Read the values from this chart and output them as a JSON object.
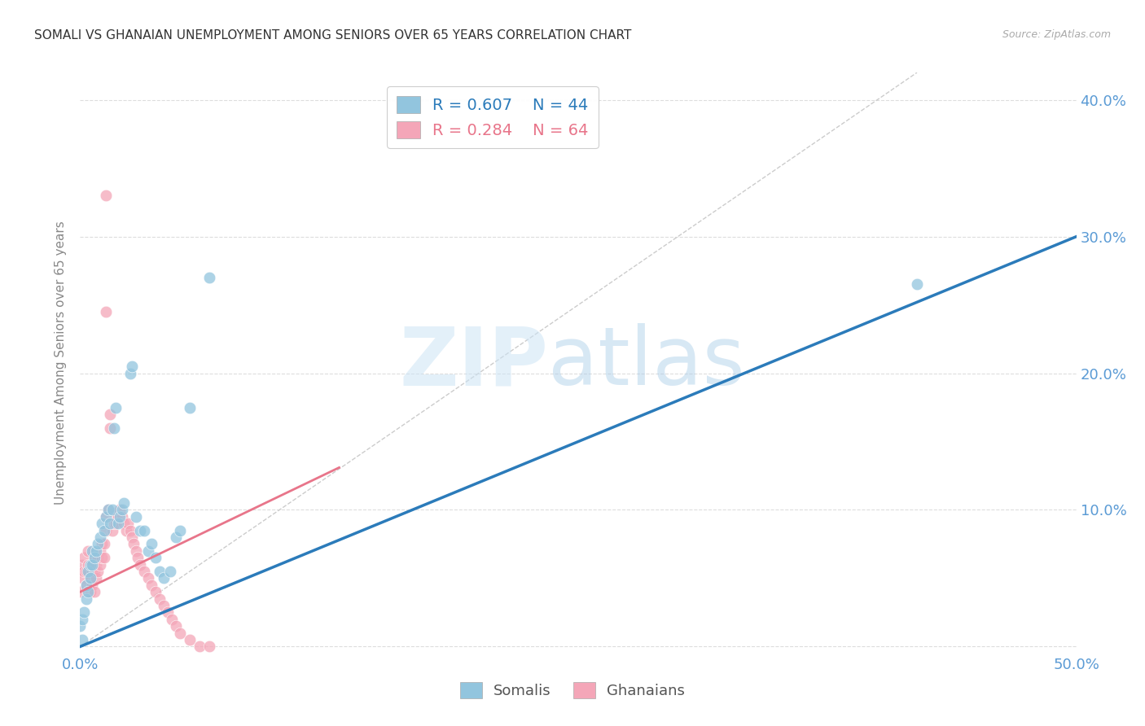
{
  "title": "SOMALI VS GHANAIAN UNEMPLOYMENT AMONG SENIORS OVER 65 YEARS CORRELATION CHART",
  "source": "Source: ZipAtlas.com",
  "ylabel": "Unemployment Among Seniors over 65 years",
  "xlim": [
    0.0,
    0.5
  ],
  "ylim": [
    -0.005,
    0.42
  ],
  "somali_color": "#92c5de",
  "ghanaian_color": "#f4a6b8",
  "somali_line_color": "#2b7bba",
  "ghanaian_line_color": "#e8758a",
  "somali_R": 0.607,
  "somali_N": 44,
  "ghanaian_R": 0.284,
  "ghanaian_N": 64,
  "background_color": "#ffffff",
  "grid_color": "#dddddd",
  "tick_color": "#5b9bd5",
  "title_color": "#333333",
  "source_color": "#aaaaaa",
  "ylabel_color": "#888888",
  "somali_x": [
    0.0,
    0.001,
    0.002,
    0.003,
    0.003,
    0.004,
    0.004,
    0.005,
    0.005,
    0.006,
    0.006,
    0.007,
    0.008,
    0.009,
    0.01,
    0.011,
    0.012,
    0.013,
    0.014,
    0.015,
    0.016,
    0.017,
    0.018,
    0.019,
    0.02,
    0.021,
    0.022,
    0.025,
    0.026,
    0.028,
    0.03,
    0.032,
    0.034,
    0.036,
    0.038,
    0.04,
    0.042,
    0.045,
    0.048,
    0.05,
    0.055,
    0.065,
    0.42,
    0.001
  ],
  "somali_y": [
    0.015,
    0.02,
    0.025,
    0.035,
    0.045,
    0.04,
    0.055,
    0.05,
    0.06,
    0.06,
    0.07,
    0.065,
    0.07,
    0.075,
    0.08,
    0.09,
    0.085,
    0.095,
    0.1,
    0.09,
    0.1,
    0.16,
    0.175,
    0.09,
    0.095,
    0.1,
    0.105,
    0.2,
    0.205,
    0.095,
    0.085,
    0.085,
    0.07,
    0.075,
    0.065,
    0.055,
    0.05,
    0.055,
    0.08,
    0.085,
    0.175,
    0.27,
    0.265,
    0.005
  ],
  "ghanaian_x": [
    0.0,
    0.0,
    0.001,
    0.001,
    0.002,
    0.002,
    0.003,
    0.003,
    0.004,
    0.004,
    0.005,
    0.005,
    0.005,
    0.006,
    0.006,
    0.007,
    0.007,
    0.007,
    0.008,
    0.008,
    0.009,
    0.009,
    0.01,
    0.01,
    0.011,
    0.011,
    0.012,
    0.012,
    0.013,
    0.013,
    0.014,
    0.015,
    0.015,
    0.016,
    0.017,
    0.018,
    0.018,
    0.019,
    0.02,
    0.021,
    0.022,
    0.023,
    0.024,
    0.025,
    0.026,
    0.027,
    0.028,
    0.029,
    0.03,
    0.032,
    0.034,
    0.036,
    0.038,
    0.04,
    0.042,
    0.044,
    0.046,
    0.048,
    0.05,
    0.055,
    0.06,
    0.065,
    0.013,
    0.013
  ],
  "ghanaian_y": [
    0.04,
    0.055,
    0.05,
    0.06,
    0.055,
    0.065,
    0.045,
    0.055,
    0.06,
    0.07,
    0.04,
    0.05,
    0.06,
    0.045,
    0.055,
    0.04,
    0.055,
    0.065,
    0.05,
    0.06,
    0.055,
    0.065,
    0.06,
    0.07,
    0.065,
    0.075,
    0.065,
    0.075,
    0.085,
    0.095,
    0.1,
    0.16,
    0.17,
    0.085,
    0.09,
    0.09,
    0.095,
    0.095,
    0.1,
    0.095,
    0.09,
    0.085,
    0.09,
    0.085,
    0.08,
    0.075,
    0.07,
    0.065,
    0.06,
    0.055,
    0.05,
    0.045,
    0.04,
    0.035,
    0.03,
    0.025,
    0.02,
    0.015,
    0.01,
    0.005,
    0.0,
    0.0,
    0.33,
    0.245
  ],
  "x_ticks": [
    0.0,
    0.1,
    0.2,
    0.3,
    0.4,
    0.5
  ],
  "x_tick_labels_show": [
    "0.0%",
    "",
    "",
    "",
    "",
    "50.0%"
  ],
  "y_ticks_right": [
    0.0,
    0.1,
    0.2,
    0.3,
    0.4
  ],
  "y_tick_labels_right": [
    "",
    "10.0%",
    "20.0%",
    "30.0%",
    "40.0%"
  ]
}
